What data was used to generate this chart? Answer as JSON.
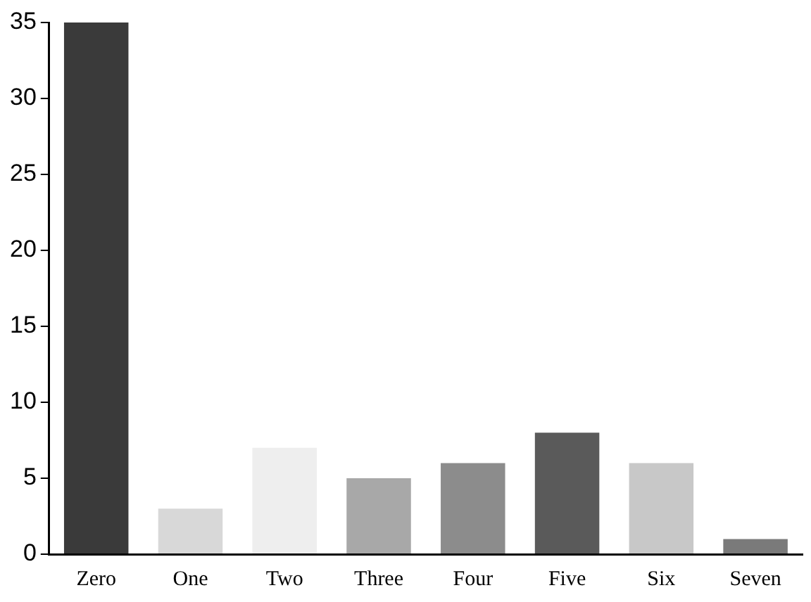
{
  "chart_data": {
    "type": "bar",
    "categories": [
      "Zero",
      "One",
      "Two",
      "Three",
      "Four",
      "Five",
      "Six",
      "Seven"
    ],
    "values": [
      35,
      3,
      7,
      5,
      6,
      8,
      6,
      1
    ],
    "colors": [
      "#3a3a3a",
      "#d8d8d8",
      "#eeeeee",
      "#a8a8a8",
      "#8c8c8c",
      "#5a5a5a",
      "#c8c8c8",
      "#7a7a7a"
    ],
    "ylim": [
      0,
      35
    ],
    "yticks": [
      0,
      5,
      10,
      15,
      20,
      25,
      30,
      35
    ],
    "grid": false,
    "legend": false
  }
}
